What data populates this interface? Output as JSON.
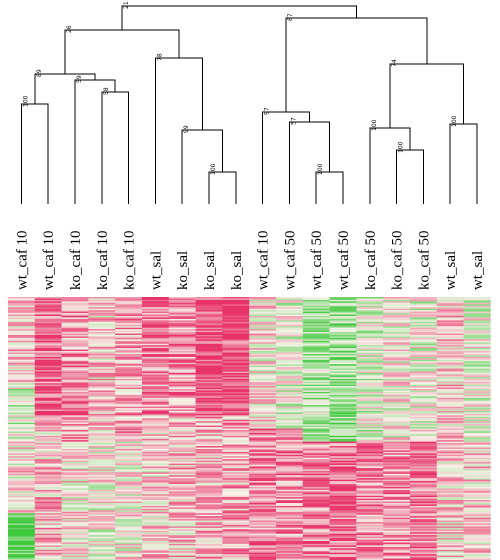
{
  "columns": [
    "wt_caf 10",
    "wt_caf 10",
    "ko_caf 10",
    "ko_caf 10",
    "ko_caf 10",
    "wt_sal",
    "ko_sal",
    "ko_sal",
    "ko_sal",
    "wt_caf 10",
    "wt_caf 50",
    "wt_caf 50",
    "wt_caf 50",
    "ko_caf 50",
    "ko_caf 50",
    "ko_caf 50",
    "wt_sal",
    "wt_sal"
  ],
  "dendrogram": {
    "nodes": [
      {
        "id": "n_a",
        "left": 0,
        "right": 1,
        "support": "100",
        "level": 0.5
      },
      {
        "id": "n_b",
        "left": 3,
        "right": 4,
        "support": "58",
        "level": 0.56
      },
      {
        "id": "n_c",
        "left": 2,
        "right": "n_b",
        "support": "59",
        "level": 0.62
      },
      {
        "id": "n_d",
        "left": "n_a",
        "right": "n_c",
        "support": "89",
        "level": 0.65
      },
      {
        "id": "n_e",
        "left": 7,
        "right": 8,
        "support": "100",
        "level": 0.16
      },
      {
        "id": "n_f",
        "left": 6,
        "right": "n_e",
        "support": "99",
        "level": 0.37
      },
      {
        "id": "n_g",
        "left": 5,
        "right": "n_f",
        "support": "78",
        "level": 0.73
      },
      {
        "id": "n_h",
        "left": "n_d",
        "right": "n_g",
        "support": "26",
        "level": 0.87
      },
      {
        "id": "n_i",
        "left": 11,
        "right": 12,
        "support": "100",
        "level": 0.16
      },
      {
        "id": "n_j",
        "left": 10,
        "right": "n_i",
        "support": "57",
        "level": 0.41
      },
      {
        "id": "n_k",
        "left": 9,
        "right": "n_j",
        "support": "97",
        "level": 0.46
      },
      {
        "id": "n_l",
        "left": 14,
        "right": 15,
        "support": "100",
        "level": 0.27
      },
      {
        "id": "n_m",
        "left": 13,
        "right": "n_l",
        "support": "100",
        "level": 0.38
      },
      {
        "id": "n_n",
        "left": 16,
        "right": 17,
        "support": "100",
        "level": 0.4
      },
      {
        "id": "n_o",
        "left": "n_m",
        "right": "n_n",
        "support": "74",
        "level": 0.7
      },
      {
        "id": "n_p",
        "left": "n_k",
        "right": "n_o",
        "support": "87",
        "level": 0.93
      },
      {
        "id": "n_root",
        "left": "n_h",
        "right": "n_p",
        "support": "21",
        "level": 0.99
      }
    ]
  },
  "heatmap": {
    "rows": 180,
    "colors": {
      "high": "#e8336a",
      "mid": "#f6f2e8",
      "low": "#3ec83c"
    },
    "column_blocks": [
      [
        [
          0,
          0.5,
          0.2
        ],
        [
          0.35,
          0.55,
          -0.2
        ],
        [
          0.55,
          0.82,
          0.1
        ],
        [
          0.82,
          1,
          -0.9
        ]
      ],
      [
        [
          0,
          0.5,
          0.7
        ],
        [
          0.5,
          0.62,
          0.2
        ],
        [
          0.62,
          1,
          0.3
        ]
      ],
      [
        [
          0,
          0.55,
          0.5
        ],
        [
          0.55,
          1,
          0.1
        ]
      ],
      [
        [
          0,
          0.55,
          0.2
        ],
        [
          0.55,
          1,
          0.0
        ]
      ],
      [
        [
          0,
          0.55,
          0.45
        ],
        [
          0.55,
          1,
          0.05
        ]
      ],
      [
        [
          0,
          0.45,
          0.6
        ],
        [
          0.45,
          1,
          0.2
        ]
      ],
      [
        [
          0,
          0.45,
          0.5
        ],
        [
          0.45,
          1,
          0.3
        ]
      ],
      [
        [
          0,
          0.45,
          0.9
        ],
        [
          0.45,
          1,
          0.35
        ]
      ],
      [
        [
          0,
          0.45,
          0.9
        ],
        [
          0.45,
          1,
          0.4
        ]
      ],
      [
        [
          0,
          0.5,
          0.1
        ],
        [
          0.5,
          1,
          0.6
        ]
      ],
      [
        [
          0,
          0.5,
          -0.1
        ],
        [
          0.5,
          1,
          0.5
        ]
      ],
      [
        [
          0,
          0.55,
          -0.4
        ],
        [
          0.55,
          1,
          0.6
        ]
      ],
      [
        [
          0,
          0.55,
          -0.5
        ],
        [
          0.55,
          1,
          0.7
        ]
      ],
      [
        [
          0,
          0.55,
          -0.2
        ],
        [
          0.55,
          1,
          0.5
        ]
      ],
      [
        [
          0,
          0.55,
          0.0
        ],
        [
          0.55,
          1,
          0.5
        ]
      ],
      [
        [
          0,
          0.55,
          -0.1
        ],
        [
          0.55,
          1,
          0.7
        ]
      ],
      [
        [
          0,
          0.55,
          0.2
        ],
        [
          0.55,
          1,
          0.2
        ]
      ],
      [
        [
          0,
          0.55,
          -0.1
        ],
        [
          0.55,
          1,
          0.2
        ]
      ]
    ]
  }
}
